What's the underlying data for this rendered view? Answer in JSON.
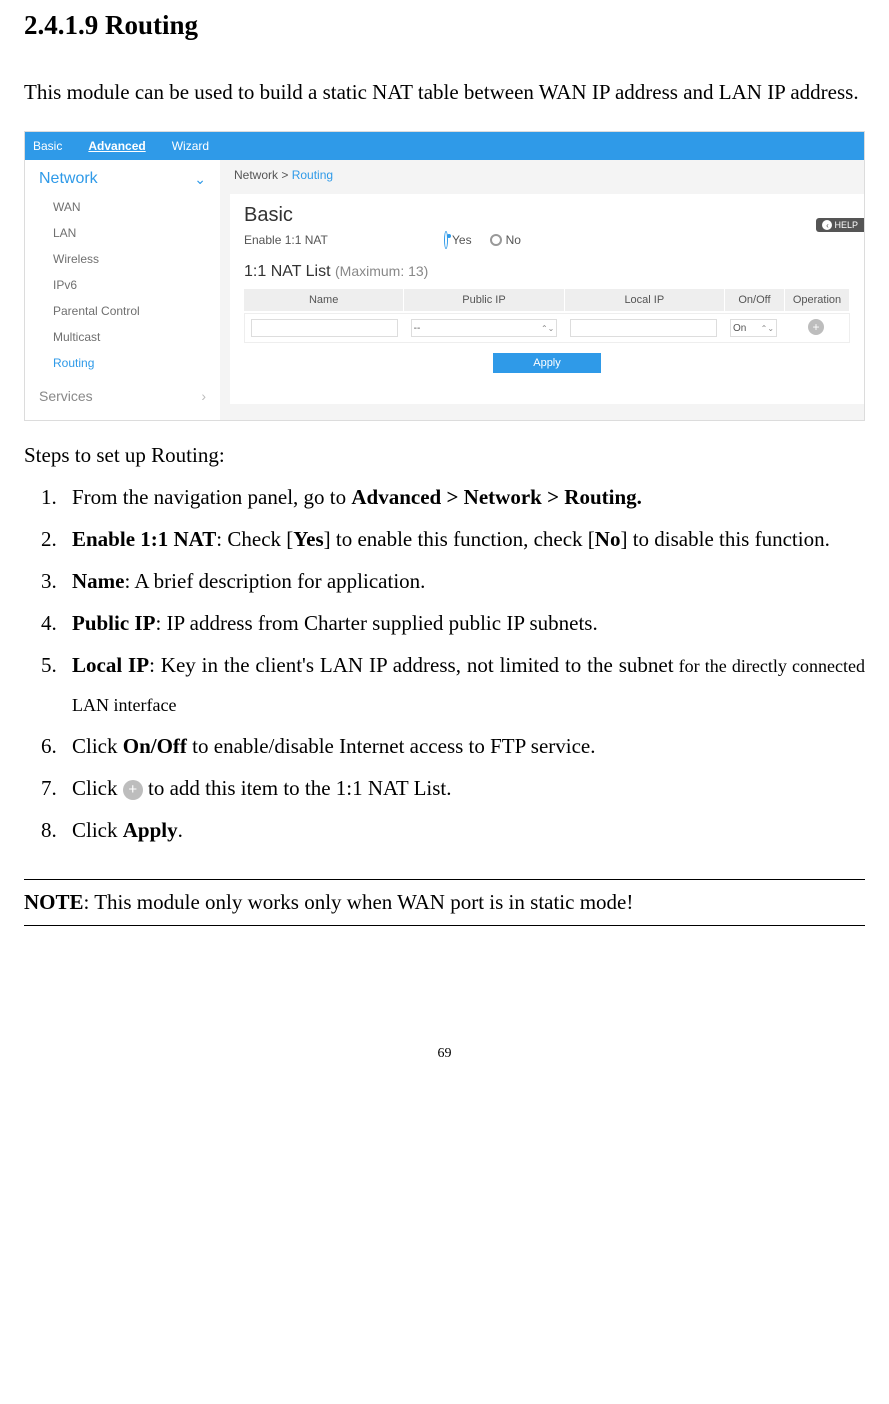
{
  "doc": {
    "section_title": "2.4.1.9 Routing",
    "intro": "This module can be used to build a static NAT table between WAN IP address and LAN IP address.",
    "steps_intro": "Steps to set up Routing:",
    "step1_a": "From the navigation panel, go to ",
    "step1_b": "Advanced > Network > Routing.",
    "step2_a": "Enable 1:1 NAT",
    "step2_b": ": Check [",
    "step2_c": "Yes",
    "step2_d": "] to enable this function, check [",
    "step2_e": "No",
    "step2_f": "] to disable this function.",
    "step3_a": "Name",
    "step3_b": ": A brief description for application.",
    "step4_a": "Public IP",
    "step4_b": ": IP address from Charter supplied public IP subnets.",
    "step5_a": "Local IP",
    "step5_b": ": Key in the client's LAN IP address, not limited to the subnet",
    "step5_c": " for the directly connected LAN interface",
    "step6_a": "Click ",
    "step6_b": "On/Off",
    "step6_c": " to enable/disable Internet access to FTP service.",
    "step7_a": "Click ",
    "step7_b": " to add this item to the 1:1 NAT List.",
    "step8_a": "Click ",
    "step8_b": "Apply",
    "step8_c": ".",
    "note_a": "NOTE",
    "note_b": ": This module only works only when WAN port is in static mode!",
    "page_number": "69"
  },
  "ui": {
    "tabs": {
      "basic": "Basic",
      "advanced": "Advanced",
      "wizard": "Wizard"
    },
    "sidebar": {
      "header": "Network",
      "items": [
        "WAN",
        "LAN",
        "Wireless",
        "IPv6",
        "Parental Control",
        "Multicast",
        "Routing"
      ],
      "footer": "Services"
    },
    "breadcrumb": {
      "a": "Network > ",
      "b": "Routing"
    },
    "panel": {
      "title": "Basic",
      "enable_label": "Enable 1:1 NAT",
      "yes": "Yes",
      "no": "No",
      "list_title": "1:1 NAT List ",
      "list_max": "(Maximum: 13)",
      "cols": {
        "name": "Name",
        "pub": "Public IP",
        "loc": "Local IP",
        "on": "On/Off",
        "op": "Operation"
      },
      "row": {
        "pub_placeholder": "--",
        "on_val": "On"
      },
      "apply": "Apply",
      "help": "HELP"
    }
  }
}
